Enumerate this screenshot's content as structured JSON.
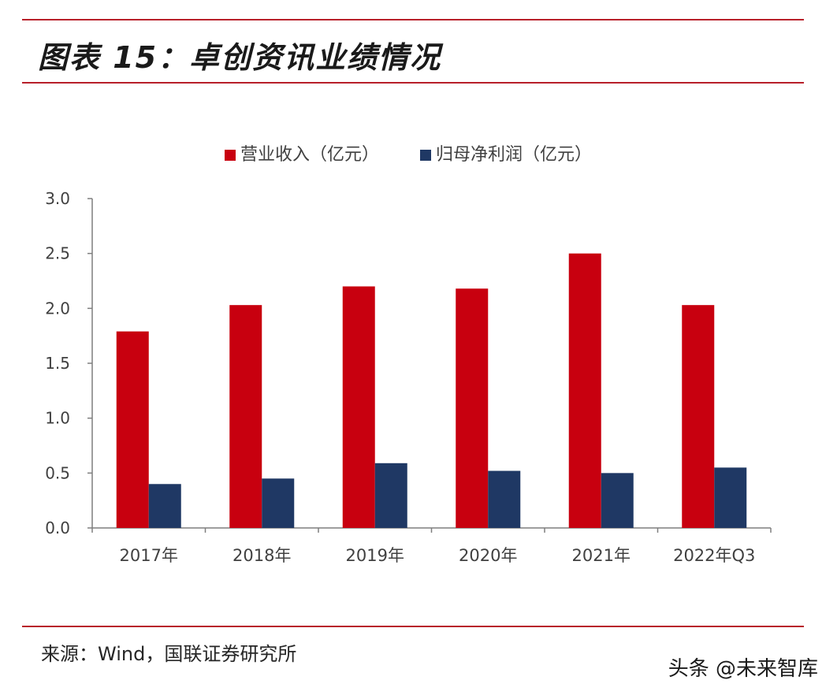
{
  "header": {
    "title": "图表 15：卓创资讯业绩情况"
  },
  "footer": {
    "source": "来源：Wind，国联证券研究所",
    "watermark": "头条 @未来智库"
  },
  "colors": {
    "rule": "#b8202a",
    "revenue": "#c8000f",
    "profit": "#1f3864",
    "axis": "#7f7f7f",
    "text": "#404040"
  },
  "chart_data": {
    "type": "bar",
    "categories": [
      "2017年",
      "2018年",
      "2019年",
      "2020年",
      "2021年",
      "2022年Q3"
    ],
    "series": [
      {
        "name": "营业收入（亿元）",
        "values": [
          1.79,
          2.03,
          2.2,
          2.18,
          2.5,
          2.03
        ]
      },
      {
        "name": "归母净利润（亿元）",
        "values": [
          0.4,
          0.45,
          0.59,
          0.52,
          0.5,
          0.55
        ]
      }
    ],
    "ylim": [
      0,
      3.0
    ],
    "yticks": [
      "0.0",
      "0.5",
      "1.0",
      "1.5",
      "2.0",
      "2.5",
      "3.0"
    ],
    "grid": false,
    "legend_position": "top-center"
  }
}
